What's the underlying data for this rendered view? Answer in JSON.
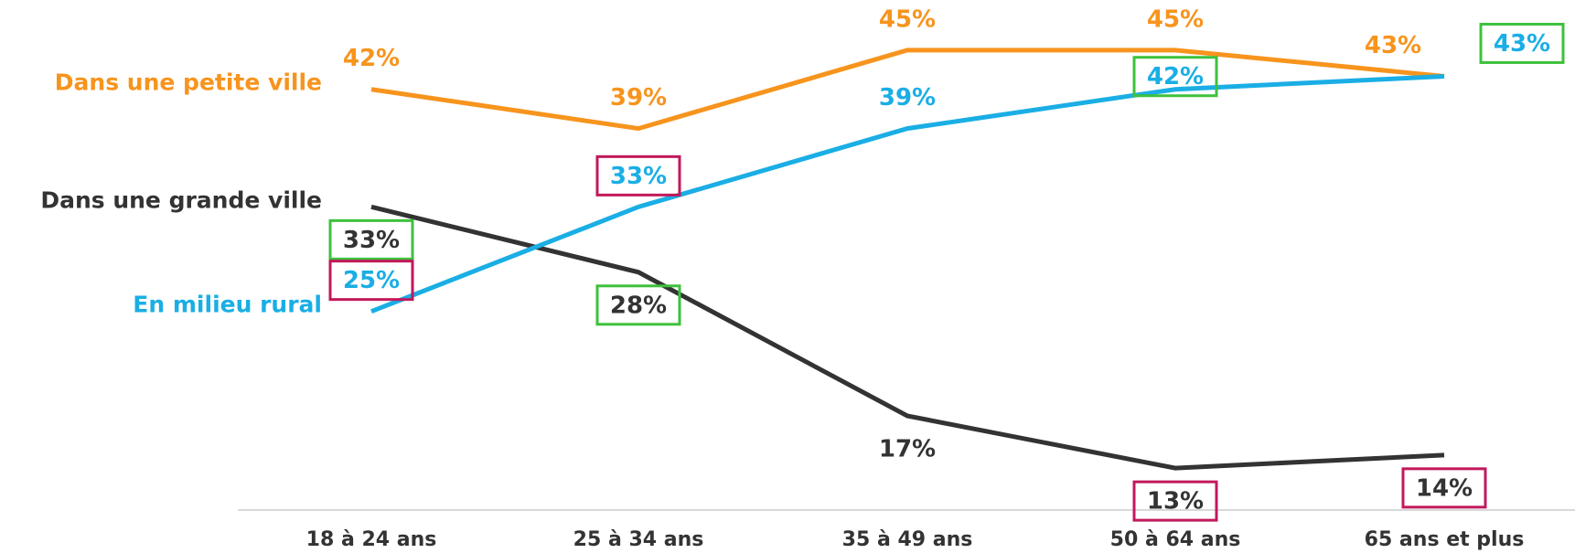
{
  "chart_data": {
    "type": "line",
    "categories": [
      "18 à 24 ans",
      "25 à 34 ans",
      "35 à 49 ans",
      "50 à 64 ans",
      "65 ans et plus"
    ],
    "series": [
      {
        "name": "Dans une petite ville",
        "color": "#f7941d",
        "values": [
          42,
          39,
          45,
          45,
          43
        ],
        "value_labels": [
          "42%",
          "39%",
          "45%",
          "45%",
          "43%"
        ],
        "box_colors": [
          null,
          null,
          null,
          null,
          null
        ]
      },
      {
        "name": "Dans une grande ville",
        "color": "#333333",
        "values": [
          33,
          28,
          17,
          13,
          14
        ],
        "value_labels": [
          "33%",
          "28%",
          "17%",
          "13%",
          "14%"
        ],
        "box_colors": [
          "#3dc13c",
          "#3dc13c",
          null,
          "#c2185b",
          "#c2185b"
        ]
      },
      {
        "name": "En milieu rural",
        "color": "#1aaee5",
        "values": [
          25,
          33,
          39,
          42,
          43
        ],
        "value_labels": [
          "25%",
          "33%",
          "39%",
          "42%",
          "43%"
        ],
        "box_colors": [
          "#c2185b",
          "#c2185b",
          null,
          "#3dc13c",
          "#3dc13c"
        ]
      }
    ],
    "ylim": [
      10,
      48
    ]
  }
}
